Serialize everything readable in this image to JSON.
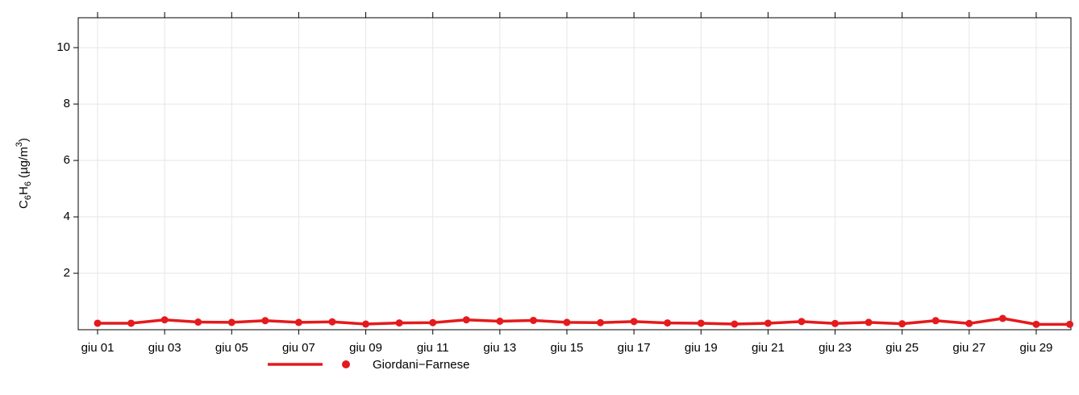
{
  "chart_data": {
    "type": "line",
    "y_label": [
      "C",
      "6",
      "H",
      "6",
      " (µg/m",
      "3",
      ")"
    ],
    "categories": [
      "giu 01",
      null,
      "giu 03",
      null,
      "giu 05",
      null,
      "giu 07",
      null,
      "giu 09",
      null,
      "giu 11",
      null,
      "giu 13",
      null,
      "giu 15",
      null,
      "giu 17",
      null,
      "giu 19",
      null,
      "giu 21",
      null,
      "giu 23",
      null,
      "giu 25",
      null,
      "giu 27",
      null,
      "giu 29",
      null
    ],
    "series": [
      {
        "name": "Giordani−Farnese",
        "color": "#e41a1c",
        "values": [
          0.23,
          0.23,
          0.35,
          0.27,
          0.26,
          0.32,
          0.26,
          0.28,
          0.2,
          0.24,
          0.25,
          0.35,
          0.3,
          0.33,
          0.26,
          0.25,
          0.29,
          0.24,
          0.23,
          0.2,
          0.23,
          0.29,
          0.22,
          0.26,
          0.21,
          0.32,
          0.22,
          0.4,
          0.19,
          0.19
        ]
      }
    ],
    "ylim": [
      0,
      11.06
    ],
    "yticks": [
      2,
      4,
      6,
      8,
      10
    ],
    "grid": true
  }
}
